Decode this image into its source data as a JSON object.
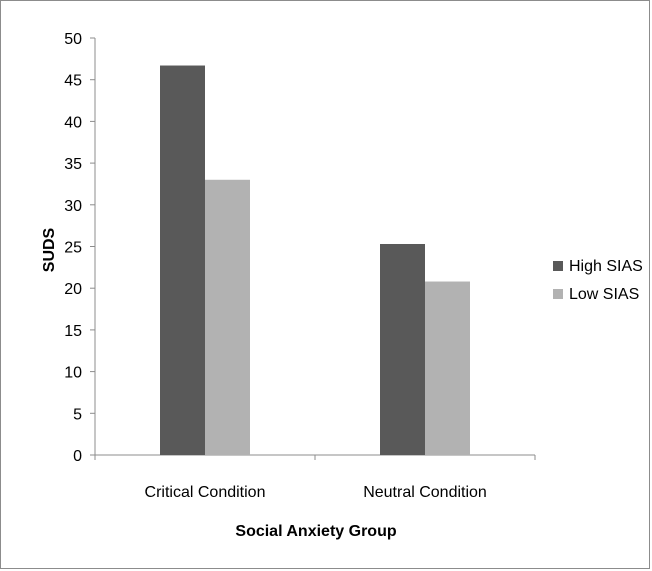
{
  "chart_data": {
    "type": "bar",
    "title": "",
    "xlabel": "Social Anxiety Group",
    "ylabel": "SUDS",
    "ylim": [
      0,
      50
    ],
    "yticks": [
      0,
      5,
      10,
      15,
      20,
      25,
      30,
      35,
      40,
      45,
      50
    ],
    "categories": [
      "Critical Condition",
      "Neutral Condition"
    ],
    "series": [
      {
        "name": "High SIAS",
        "color": "#595959",
        "values": [
          46.7,
          25.3
        ]
      },
      {
        "name": "Low SIAS",
        "color": "#b2b2b2",
        "values": [
          33.0,
          20.8
        ]
      }
    ],
    "grid": false,
    "legend_position": "right"
  }
}
